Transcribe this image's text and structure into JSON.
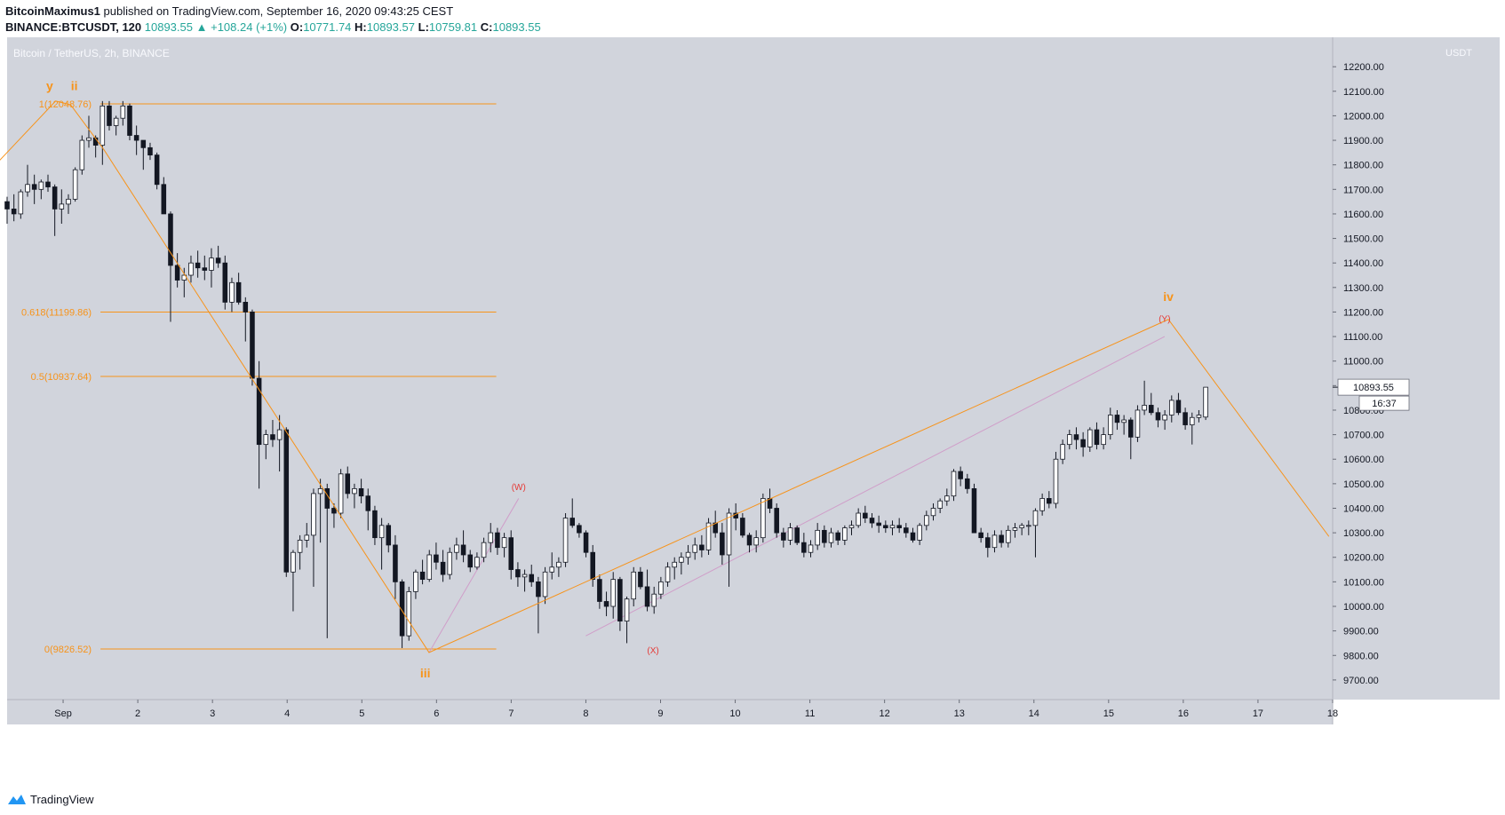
{
  "header": {
    "author": "BitcoinMaximus1",
    "published_text": "published on TradingView.com, September 16, 2020 09:43:25 CEST",
    "symbol": "BINANCE:BTCUSDT, 120",
    "last": "10893.55",
    "change": "▲ +108.24 (+1%)",
    "o_label": "O:",
    "o": "10771.74",
    "h_label": "H:",
    "h": "10893.57",
    "l_label": "L:",
    "l": "10759.81",
    "c_label": "C:",
    "c": "10893.55"
  },
  "footer": {
    "brand": "TradingView"
  },
  "chart_data": {
    "type": "candlestick",
    "title": "Bitcoin / TetherUS, 2h, BINANCE",
    "currency": "USDT",
    "ylim": [
      9620,
      12320
    ],
    "x_range": [
      "Aug 31 06:00",
      "Sep 18 00:00"
    ],
    "y_ticks": [
      9700,
      9800,
      9900,
      10000,
      10100,
      10200,
      10300,
      10400,
      10500,
      10600,
      10700,
      10800,
      10900,
      11000,
      11100,
      11200,
      11300,
      11400,
      11500,
      11600,
      11700,
      11800,
      11900,
      12000,
      12100,
      12200
    ],
    "y_tick_labels": [
      "9700.00",
      "9800.00",
      "9900.00",
      "10000.00",
      "10100.00",
      "10200.00",
      "10300.00",
      "10400.00",
      "10500.00",
      "10600.00",
      "10700.00",
      "10800.00",
      "10900.00",
      "11000.00",
      "11100.00",
      "11200.00",
      "11300.00",
      "11400.00",
      "11500.00",
      "11600.00",
      "11700.00",
      "11800.00",
      "11900.00",
      "12000.00",
      "12100.00",
      "12200.00"
    ],
    "x_ticks": [
      1,
      2,
      3,
      4,
      5,
      6,
      7,
      8,
      9,
      10,
      11,
      12,
      13,
      14,
      15,
      16,
      17,
      18
    ],
    "x_tick_labels": [
      "Sep",
      "2",
      "3",
      "4",
      "5",
      "6",
      "7",
      "8",
      "9",
      "10",
      "11",
      "12",
      "13",
      "14",
      "15",
      "16",
      "17",
      "18"
    ],
    "last_price": "10893.55",
    "last_price_value": 10893.55,
    "countdown": "16:37",
    "fib_levels": [
      {
        "label": "1(12048.76)",
        "value": 12048.76
      },
      {
        "label": "0.618(11199.86)",
        "value": 11199.86
      },
      {
        "label": "0.5(10937.64)",
        "value": 10937.64
      },
      {
        "label": "0(9826.52)",
        "value": 9826.52
      }
    ],
    "fib_x_range": [
      1.5,
      6.8
    ],
    "wave_labels": [
      {
        "text": "y",
        "day": 0.82,
        "price": 12105,
        "color": "#f7931a"
      },
      {
        "text": "ii",
        "day": 1.15,
        "price": 12105,
        "color": "#f7931a"
      },
      {
        "text": "iii",
        "day": 5.85,
        "price": 9710,
        "color": "#f7931a"
      },
      {
        "text": "iv",
        "day": 15.8,
        "price": 11245,
        "color": "#f7931a"
      },
      {
        "text": "(W)",
        "day": 7.1,
        "price": 10475,
        "color": "#e53935"
      },
      {
        "text": "(X)",
        "day": 8.9,
        "price": 9808,
        "color": "#e53935"
      },
      {
        "text": "(Y)",
        "day": 15.75,
        "price": 11160,
        "color": "#e53935"
      }
    ],
    "wave_path": [
      [
        0.0,
        11770
      ],
      [
        0.9,
        12060
      ],
      [
        1.1,
        12045
      ],
      [
        1.55,
        11860
      ],
      [
        5.9,
        9812
      ],
      [
        15.8,
        11170
      ],
      [
        17.95,
        10285
      ]
    ],
    "channel_lines": [
      {
        "from": [
          5.9,
          9812
        ],
        "to": [
          7.1,
          10440
        ]
      },
      {
        "from": [
          8.0,
          9880
        ],
        "to": [
          15.75,
          11100
        ]
      }
    ],
    "candles_ohlc": [
      [
        11650,
        11670,
        11560,
        11620
      ],
      [
        11620,
        11680,
        11570,
        11600
      ],
      [
        11600,
        11700,
        11580,
        11690
      ],
      [
        11690,
        11800,
        11670,
        11720
      ],
      [
        11720,
        11760,
        11640,
        11700
      ],
      [
        11700,
        11740,
        11660,
        11730
      ],
      [
        11730,
        11760,
        11690,
        11710
      ],
      [
        11710,
        11720,
        11510,
        11620
      ],
      [
        11620,
        11700,
        11560,
        11640
      ],
      [
        11640,
        11680,
        11600,
        11660
      ],
      [
        11660,
        11790,
        11650,
        11780
      ],
      [
        11780,
        11920,
        11760,
        11900
      ],
      [
        11900,
        12000,
        11870,
        11910
      ],
      [
        11910,
        11920,
        11830,
        11880
      ],
      [
        11880,
        12060,
        11800,
        12040
      ],
      [
        12040,
        12060,
        11940,
        11960
      ],
      [
        11960,
        12000,
        11920,
        11990
      ],
      [
        11990,
        12060,
        11960,
        12040
      ],
      [
        12040,
        12050,
        11900,
        11920
      ],
      [
        11920,
        11960,
        11840,
        11900
      ],
      [
        11900,
        11900,
        11780,
        11870
      ],
      [
        11870,
        11890,
        11820,
        11840
      ],
      [
        11840,
        11850,
        11700,
        11720
      ],
      [
        11720,
        11750,
        11600,
        11600
      ],
      [
        11600,
        11610,
        11160,
        11390
      ],
      [
        11390,
        11440,
        11300,
        11330
      ],
      [
        11330,
        11380,
        11260,
        11350
      ],
      [
        11350,
        11430,
        11320,
        11400
      ],
      [
        11400,
        11450,
        11340,
        11380
      ],
      [
        11380,
        11430,
        11330,
        11370
      ],
      [
        11370,
        11460,
        11300,
        11420
      ],
      [
        11420,
        11470,
        11380,
        11400
      ],
      [
        11400,
        11430,
        11210,
        11240
      ],
      [
        11240,
        11340,
        11200,
        11320
      ],
      [
        11320,
        11360,
        11230,
        11240
      ],
      [
        11240,
        11260,
        11080,
        11200
      ],
      [
        11200,
        11210,
        10900,
        10930
      ],
      [
        10930,
        11000,
        10480,
        10660
      ],
      [
        10660,
        10720,
        10600,
        10700
      ],
      [
        10700,
        10760,
        10650,
        10680
      ],
      [
        10680,
        10780,
        10550,
        10720
      ],
      [
        10720,
        10730,
        10120,
        10140
      ],
      [
        10140,
        10230,
        9980,
        10220
      ],
      [
        10220,
        10290,
        10150,
        10270
      ],
      [
        10270,
        10340,
        10240,
        10290
      ],
      [
        10290,
        10480,
        10080,
        10460
      ],
      [
        10460,
        10520,
        10260,
        10480
      ],
      [
        10480,
        10500,
        9870,
        10400
      ],
      [
        10400,
        10420,
        10320,
        10380
      ],
      [
        10380,
        10560,
        10360,
        10540
      ],
      [
        10540,
        10570,
        10440,
        10460
      ],
      [
        10460,
        10500,
        10400,
        10480
      ],
      [
        10480,
        10520,
        10420,
        10450
      ],
      [
        10450,
        10480,
        10310,
        10390
      ],
      [
        10390,
        10410,
        10250,
        10280
      ],
      [
        10280,
        10360,
        10150,
        10330
      ],
      [
        10330,
        10340,
        10220,
        10250
      ],
      [
        10250,
        10290,
        10030,
        10100
      ],
      [
        10100,
        10110,
        9830,
        9880
      ],
      [
        9880,
        10080,
        9860,
        10060
      ],
      [
        10060,
        10150,
        10030,
        10140
      ],
      [
        10140,
        10190,
        10090,
        10110
      ],
      [
        10110,
        10230,
        10100,
        10210
      ],
      [
        10210,
        10260,
        10150,
        10180
      ],
      [
        10180,
        10230,
        10100,
        10130
      ],
      [
        10130,
        10240,
        10110,
        10220
      ],
      [
        10220,
        10280,
        10190,
        10250
      ],
      [
        10250,
        10310,
        10180,
        10210
      ],
      [
        10210,
        10230,
        10140,
        10160
      ],
      [
        10160,
        10220,
        10150,
        10200
      ],
      [
        10200,
        10280,
        10180,
        10260
      ],
      [
        10260,
        10340,
        10220,
        10300
      ],
      [
        10300,
        10320,
        10210,
        10240
      ],
      [
        10240,
        10300,
        10200,
        10280
      ],
      [
        10280,
        10310,
        10110,
        10150
      ],
      [
        10150,
        10180,
        10080,
        10120
      ],
      [
        10120,
        10150,
        10060,
        10130
      ],
      [
        10130,
        10170,
        10080,
        10100
      ],
      [
        10100,
        10120,
        9890,
        10040
      ],
      [
        10040,
        10160,
        10010,
        10140
      ],
      [
        10140,
        10220,
        10110,
        10160
      ],
      [
        10160,
        10200,
        10120,
        10180
      ],
      [
        10180,
        10380,
        10160,
        10360
      ],
      [
        10360,
        10440,
        10320,
        10330
      ],
      [
        10330,
        10340,
        10280,
        10300
      ],
      [
        10300,
        10310,
        10200,
        10220
      ],
      [
        10220,
        10250,
        10080,
        10110
      ],
      [
        10110,
        10130,
        9990,
        10020
      ],
      [
        10020,
        10060,
        9960,
        10000
      ],
      [
        10000,
        10140,
        9950,
        10110
      ],
      [
        10110,
        10120,
        9900,
        9940
      ],
      [
        9940,
        10040,
        9850,
        10030
      ],
      [
        10030,
        10160,
        10000,
        10140
      ],
      [
        10140,
        10160,
        10070,
        10080
      ],
      [
        10080,
        10150,
        9980,
        10000
      ],
      [
        10000,
        10080,
        9970,
        10050
      ],
      [
        10050,
        10120,
        10030,
        10100
      ],
      [
        10100,
        10180,
        10080,
        10160
      ],
      [
        10160,
        10200,
        10110,
        10180
      ],
      [
        10180,
        10220,
        10130,
        10200
      ],
      [
        10200,
        10250,
        10170,
        10220
      ],
      [
        10220,
        10280,
        10190,
        10250
      ],
      [
        10250,
        10290,
        10200,
        10230
      ],
      [
        10230,
        10360,
        10210,
        10340
      ],
      [
        10340,
        10390,
        10280,
        10300
      ],
      [
        10300,
        10340,
        10170,
        10210
      ],
      [
        10210,
        10400,
        10080,
        10380
      ],
      [
        10380,
        10420,
        10310,
        10360
      ],
      [
        10360,
        10380,
        10280,
        10290
      ],
      [
        10290,
        10300,
        10220,
        10250
      ],
      [
        10250,
        10310,
        10220,
        10280
      ],
      [
        10280,
        10460,
        10260,
        10440
      ],
      [
        10440,
        10480,
        10380,
        10400
      ],
      [
        10400,
        10420,
        10280,
        10300
      ],
      [
        10300,
        10320,
        10240,
        10270
      ],
      [
        10270,
        10340,
        10250,
        10320
      ],
      [
        10320,
        10330,
        10250,
        10260
      ],
      [
        10260,
        10300,
        10200,
        10220
      ],
      [
        10220,
        10270,
        10200,
        10250
      ],
      [
        10250,
        10340,
        10230,
        10310
      ],
      [
        10310,
        10330,
        10240,
        10260
      ],
      [
        10260,
        10320,
        10240,
        10300
      ],
      [
        10300,
        10310,
        10250,
        10270
      ],
      [
        10270,
        10330,
        10250,
        10320
      ],
      [
        10320,
        10350,
        10290,
        10330
      ],
      [
        10330,
        10400,
        10320,
        10380
      ],
      [
        10380,
        10410,
        10340,
        10360
      ],
      [
        10360,
        10380,
        10320,
        10340
      ],
      [
        10340,
        10370,
        10300,
        10330
      ],
      [
        10330,
        10350,
        10300,
        10320
      ],
      [
        10320,
        10350,
        10290,
        10330
      ],
      [
        10330,
        10360,
        10300,
        10320
      ],
      [
        10320,
        10340,
        10280,
        10300
      ],
      [
        10300,
        10320,
        10260,
        10270
      ],
      [
        10270,
        10340,
        10250,
        10330
      ],
      [
        10330,
        10390,
        10310,
        10370
      ],
      [
        10370,
        10420,
        10350,
        10400
      ],
      [
        10400,
        10440,
        10380,
        10430
      ],
      [
        10430,
        10480,
        10410,
        10450
      ],
      [
        10450,
        10560,
        10430,
        10550
      ],
      [
        10550,
        10570,
        10490,
        10520
      ],
      [
        10520,
        10540,
        10460,
        10480
      ],
      [
        10480,
        10500,
        10360,
        10300
      ],
      [
        10300,
        10320,
        10260,
        10280
      ],
      [
        10280,
        10300,
        10200,
        10240
      ],
      [
        10240,
        10310,
        10220,
        10290
      ],
      [
        10290,
        10310,
        10240,
        10260
      ],
      [
        10260,
        10330,
        10240,
        10310
      ],
      [
        10310,
        10340,
        10280,
        10320
      ],
      [
        10320,
        10340,
        10290,
        10330
      ],
      [
        10330,
        10350,
        10290,
        10330
      ],
      [
        10330,
        10400,
        10200,
        10390
      ],
      [
        10390,
        10460,
        10370,
        10440
      ],
      [
        10440,
        10470,
        10400,
        10420
      ],
      [
        10420,
        10630,
        10400,
        10600
      ],
      [
        10600,
        10680,
        10580,
        10660
      ],
      [
        10660,
        10720,
        10640,
        10700
      ],
      [
        10700,
        10730,
        10640,
        10680
      ],
      [
        10680,
        10710,
        10610,
        10650
      ],
      [
        10650,
        10730,
        10630,
        10720
      ],
      [
        10720,
        10750,
        10640,
        10660
      ],
      [
        10660,
        10730,
        10640,
        10700
      ],
      [
        10700,
        10810,
        10680,
        10780
      ],
      [
        10780,
        10800,
        10720,
        10750
      ],
      [
        10750,
        10780,
        10700,
        10760
      ],
      [
        10760,
        10770,
        10600,
        10690
      ],
      [
        10690,
        10820,
        10670,
        10800
      ],
      [
        10800,
        10920,
        10780,
        10820
      ],
      [
        10820,
        10870,
        10780,
        10790
      ],
      [
        10790,
        10810,
        10730,
        10760
      ],
      [
        10760,
        10800,
        10720,
        10780
      ],
      [
        10780,
        10860,
        10750,
        10840
      ],
      [
        10840,
        10870,
        10780,
        10790
      ],
      [
        10790,
        10810,
        10720,
        10740
      ],
      [
        10740,
        10790,
        10660,
        10770
      ],
      [
        10770,
        10800,
        10750,
        10780
      ],
      [
        10771.74,
        10893.57,
        10759.81,
        10893.55
      ]
    ]
  }
}
